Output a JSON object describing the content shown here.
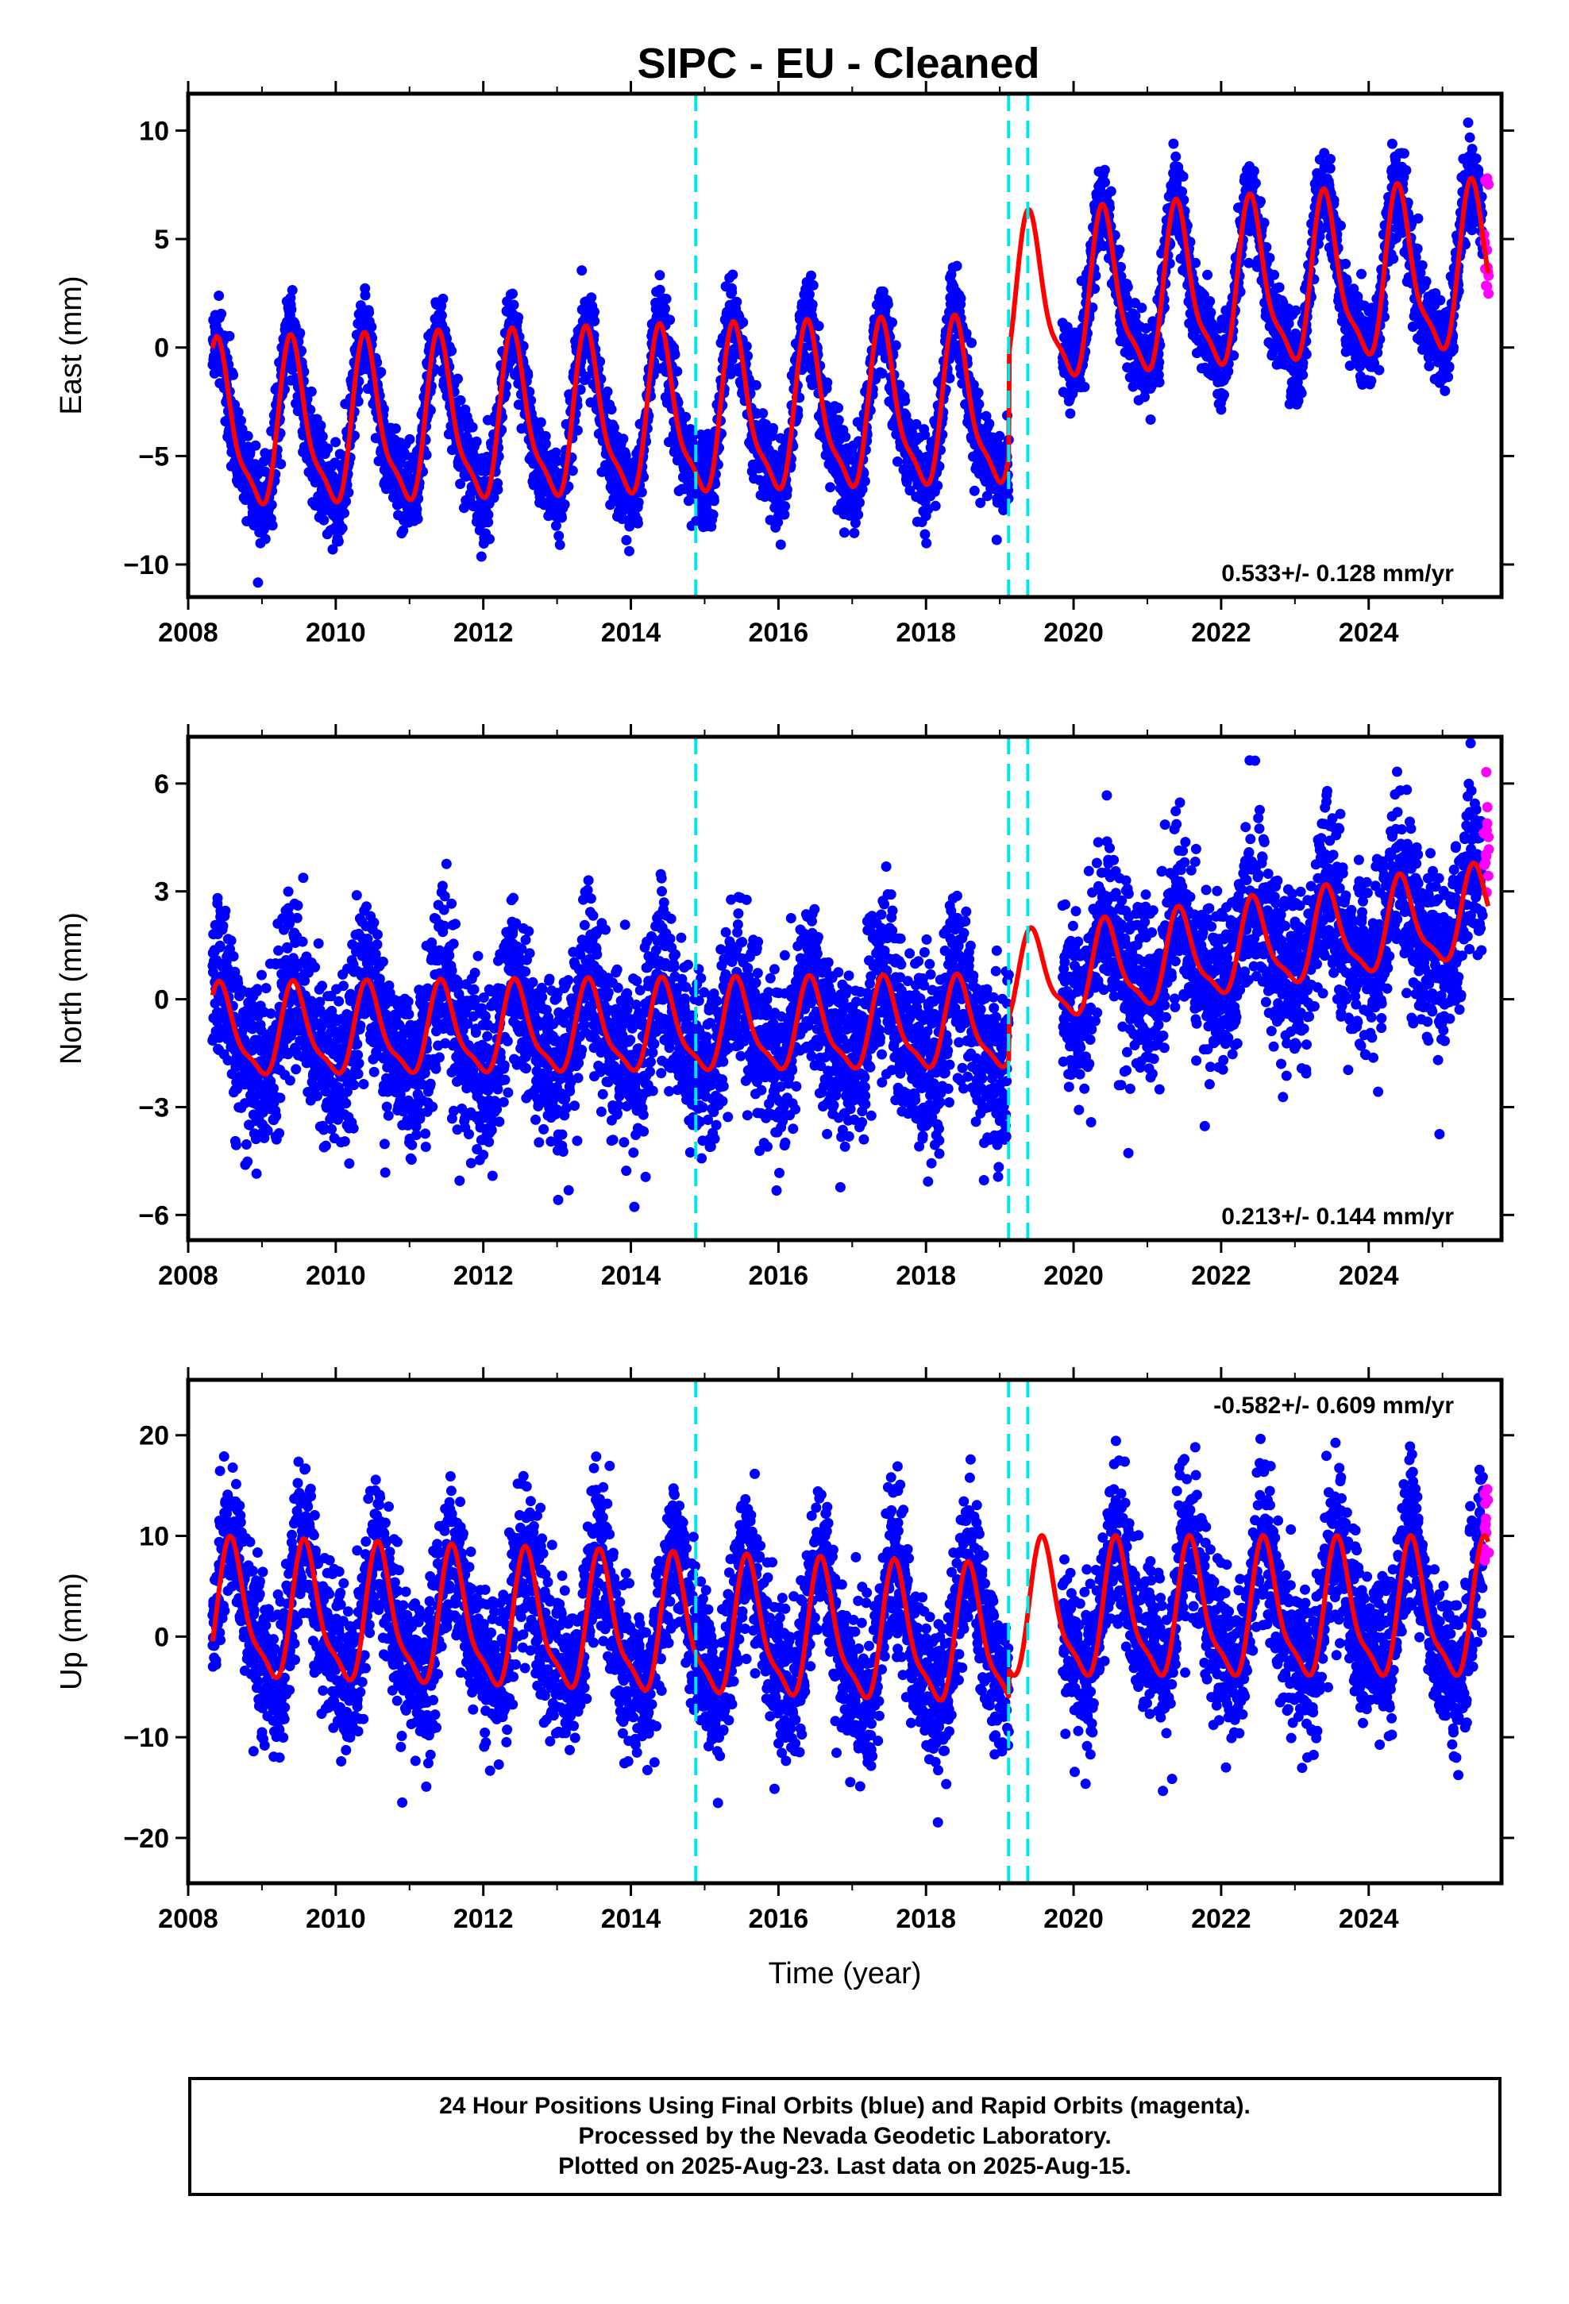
{
  "chart_data": {
    "type": "scatter",
    "title": "SIPC  - EU - Cleaned",
    "xlabel": "Time (year)",
    "xlim": [
      2008.0,
      2025.8
    ],
    "x_ticks": [
      "2008",
      "2010",
      "2012",
      "2014",
      "2016",
      "2018",
      "2020",
      "2022",
      "2024"
    ],
    "x_tick_values": [
      2008,
      2010,
      2012,
      2014,
      2016,
      2018,
      2020,
      2022,
      2024
    ],
    "data_start": 2008.33,
    "final_orbits_end": 2025.55,
    "rapid_orbits_end": 2025.62,
    "equipment_changes": [
      2014.88,
      2019.12,
      2019.38
    ],
    "data_gap": [
      2019.12,
      2019.85
    ],
    "colors": {
      "final_orbits": "#0000ff",
      "rapid_orbits": "#ff00ff",
      "model": "#ff0000",
      "equipment_change": "#00e5e5"
    },
    "panels": [
      {
        "component": "east",
        "ylabel": "East (mm)",
        "ylim": [
          -11.5,
          11.7
        ],
        "y_ticks": [
          -10,
          -5,
          0,
          5,
          10
        ],
        "rate_label": "0.533+/- 0.128 mm/yr",
        "rate_position": "bottom-right",
        "trend_pre": {
          "start": -4.0,
          "rate": 0.1
        },
        "trend_post": {
          "start": 1.8,
          "rate": 0.24
        },
        "seasonal_amplitude": 4.2,
        "seasonal_peak_phase": 0.42,
        "scatter_sd": 1.0,
        "rapid_range": [
          2.0,
          9.0
        ]
      },
      {
        "component": "north",
        "ylabel": "North (mm)",
        "ylim": [
          -6.7,
          7.3
        ],
        "y_ticks": [
          -6,
          -3,
          0,
          3,
          6
        ],
        "rate_label": "0.213+/- 0.144 mm/yr",
        "rate_position": "bottom-right",
        "trend_pre": {
          "start": -1.0,
          "rate": 0.02
        },
        "trend_post": {
          "start": 0.4,
          "rate": 0.3
        },
        "seasonal_amplitude": 1.4,
        "seasonal_peak_phase": 0.45,
        "scatter_sd": 1.2,
        "rapid_range": [
          2.5,
          7.0
        ]
      },
      {
        "component": "up",
        "ylabel": "Up (mm)",
        "ylim": [
          -24.5,
          25.5
        ],
        "y_ticks": [
          -20,
          -10,
          0,
          10,
          20
        ],
        "rate_label": "-0.582+/- 0.609 mm/yr",
        "rate_position": "top-right",
        "trend_pre": {
          "start": 2.0,
          "rate": -0.25
        },
        "trend_post": {
          "start": 2.0,
          "rate": 0.0
        },
        "seasonal_amplitude": 7.5,
        "seasonal_peak_phase": 0.6,
        "scatter_sd": 3.8,
        "rapid_range": [
          7.0,
          17.0
        ]
      }
    ]
  },
  "footer": {
    "line1": "24 Hour Positions Using Final Orbits (blue) and Rapid Orbits (magenta).",
    "line2": "Processed by the Nevada Geodetic Laboratory.",
    "line3": "Plotted on 2025-Aug-23. Last data on 2025-Aug-15."
  }
}
